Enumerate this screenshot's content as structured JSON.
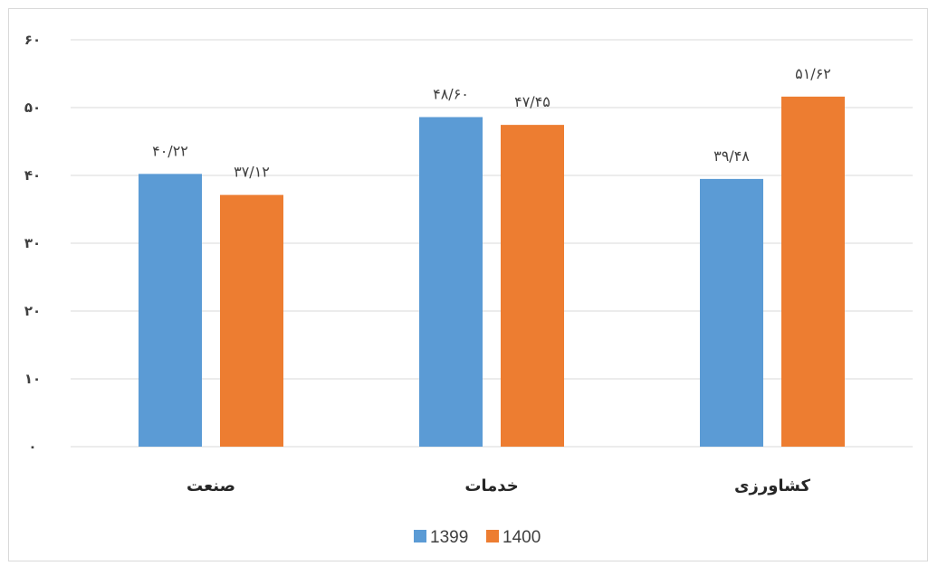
{
  "chart_data": {
    "type": "bar",
    "categories": [
      "صنعت",
      "خدمات",
      "کشاورزی"
    ],
    "series": [
      {
        "name": "1399",
        "values": [
          40.22,
          48.6,
          39.48
        ],
        "labels": [
          "۴۰/۲۲",
          "۴۸/۶۰",
          "۳۹/۴۸"
        ],
        "color": "#5b9bd5"
      },
      {
        "name": "1400",
        "values": [
          37.12,
          47.45,
          51.62
        ],
        "labels": [
          "۳۷/۱۲",
          "۴۷/۴۵",
          "۵۱/۶۲"
        ],
        "color": "#ed7d31"
      }
    ],
    "ylim": [
      0,
      60
    ],
    "yticks": [
      0,
      10,
      20,
      30,
      40,
      50,
      60
    ],
    "ytick_labels": [
      "۰",
      "۱۰",
      "۲۰",
      "۳۰",
      "۴۰",
      "۵۰",
      "۶۰"
    ],
    "title": "",
    "xlabel": "",
    "ylabel": "",
    "grid": true,
    "legend_position": "bottom",
    "gridline_color": "#d9d9d9"
  }
}
